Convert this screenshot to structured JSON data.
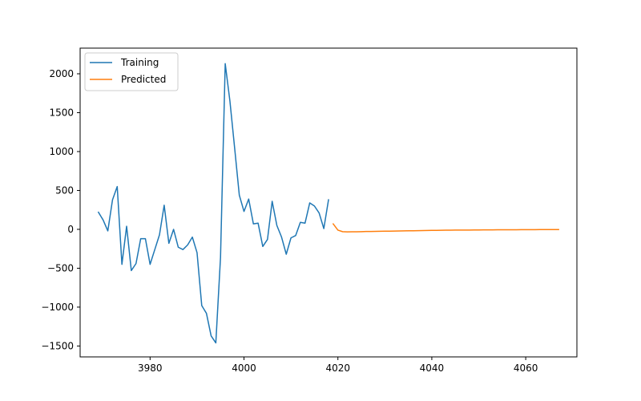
{
  "chart_data": {
    "type": "line",
    "title": "",
    "xlabel": "",
    "ylabel": "",
    "xlim": [
      3965.1,
      4070.9
    ],
    "ylim": [
      -1640,
      2330
    ],
    "xticks": [
      3980,
      4000,
      4020,
      4040,
      4060
    ],
    "yticks": [
      -1500,
      -1000,
      -500,
      0,
      500,
      1000,
      1500,
      2000
    ],
    "grid": false,
    "legend": "upper-left",
    "series": [
      {
        "name": "Training",
        "color": "#1f77b4",
        "x": [
          3969,
          3970,
          3971,
          3972,
          3973,
          3974,
          3975,
          3976,
          3977,
          3978,
          3979,
          3980,
          3981,
          3982,
          3983,
          3984,
          3985,
          3986,
          3987,
          3988,
          3989,
          3990,
          3991,
          3992,
          3993,
          3994,
          3995,
          3996,
          3997,
          3998,
          3999,
          4000,
          4001,
          4002,
          4003,
          4004,
          4005,
          4006,
          4007,
          4008,
          4009,
          4010,
          4011,
          4012,
          4013,
          4014,
          4015,
          4016,
          4017,
          4018
        ],
        "y": [
          220,
          120,
          -20,
          380,
          550,
          -450,
          40,
          -530,
          -440,
          -120,
          -120,
          -450,
          -260,
          -70,
          310,
          -180,
          0,
          -230,
          -260,
          -200,
          -100,
          -300,
          -980,
          -1080,
          -1370,
          -1460,
          -360,
          2130,
          1650,
          1050,
          440,
          230,
          390,
          70,
          80,
          -220,
          -130,
          360,
          50,
          -100,
          -320,
          -110,
          -80,
          90,
          80,
          340,
          300,
          210,
          10,
          380
        ]
      },
      {
        "name": "Predicted",
        "color": "#ff7f0e",
        "x": [
          4019,
          4020,
          4021,
          4022,
          4023,
          4024,
          4025,
          4026,
          4027,
          4028,
          4029,
          4030,
          4031,
          4032,
          4033,
          4034,
          4035,
          4036,
          4037,
          4038,
          4039,
          4040,
          4041,
          4042,
          4043,
          4044,
          4045,
          4046,
          4047,
          4048,
          4049,
          4050,
          4051,
          4052,
          4053,
          4054,
          4055,
          4056,
          4057,
          4058,
          4059,
          4060,
          4061,
          4062,
          4063,
          4064,
          4065,
          4066,
          4067
        ],
        "y": [
          70,
          -10,
          -30,
          -33,
          -32,
          -31,
          -30,
          -28,
          -27,
          -26,
          -25,
          -24,
          -23,
          -22,
          -21,
          -20,
          -19,
          -18,
          -17,
          -16,
          -15,
          -14,
          -13,
          -12,
          -11,
          -11,
          -10,
          -10,
          -9,
          -9,
          -8,
          -8,
          -7,
          -7,
          -7,
          -6,
          -6,
          -5,
          -5,
          -5,
          -4,
          -4,
          -4,
          -4,
          -3,
          -3,
          -3,
          -3,
          -3
        ]
      }
    ]
  }
}
